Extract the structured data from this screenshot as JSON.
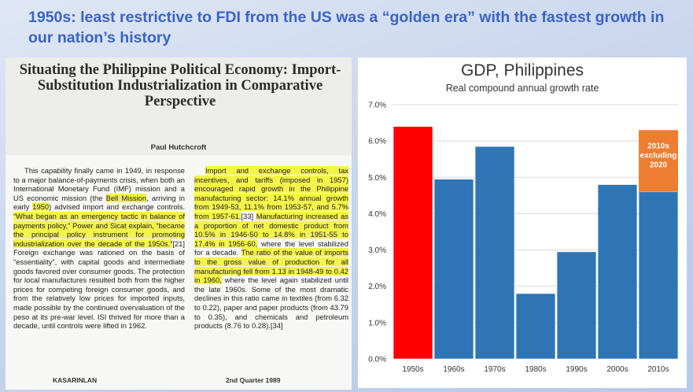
{
  "slide": {
    "title": "1950s: least restrictive to FDI from the US was a “golden era” with the fastest growth in our nation’s history"
  },
  "paper": {
    "title": "Situating the Philippine Political Economy: Import-Substitution Industrialization in Comparative Perspective",
    "author": "Paul Hutchcroft",
    "left_column": [
      {
        "t": "This capability finally came in 1949, in response to a major balance-of-payments crisis, when both an International Monetary Fund (IMF) mission and a US economic mission (the "
      },
      {
        "t": "Bell Mission",
        "hl": true
      },
      {
        "t": ", arriving in early "
      },
      {
        "t": "1950",
        "hl": true
      },
      {
        "t": ") advised import and exchange controls. "
      },
      {
        "t": "“What began as an emergency tactic in balance of payments policy,” Power and Sicat explain, “became the principal policy instrument for promoting industrialization over the decade of the 1950s.”",
        "hl": true
      },
      {
        "t": "[21] Foreign exchange was rationed on the basis of “essentiality”, with capital goods and intermediate goods favored over consumer goods. The protection for local manufactures resulted both from the higher prices for competing foreign consumer goods, and from the relatively low prices for imported inputs, made possible by the continued overvaluation of the peso at its pre-war level. ISI thrived for more than a decade, until controls were lifted in 1962."
      }
    ],
    "right_column": [
      {
        "t": "Import and exchange controls, tax incentives, and tariffs (imposed in 1957) encouraged rapid growth in the Philippine manufacturing sector: 14.1% annual growth from 1949-53, 11.1% from 1953-57, and 5.7% from 1957-61.",
        "hl": true
      },
      {
        "t": "[33] "
      },
      {
        "t": "Manufacturing increased as a proportion of net domestic product from 10.5% in 1946-50 to 14.8% in 1951-55 to 17.4% in 1956-60,",
        "hl": true
      },
      {
        "t": " where the level stabilized for a decade. "
      },
      {
        "t": "The ratio of the value of imports to the gross value of production for all manufacturing fell from 1.13 in 1948-49 to 0.42 in 1960,",
        "hl": true
      },
      {
        "t": " where the level again stabilized until the late 1960s. Some of the most dramatic declines in this ratio came in textiles (from 6.32 to 0.22), paper and paper products (from 43.79 to 0.35), and chemicals and petroleum products (8.76 to 0.28).[34]"
      }
    ],
    "footer_left": "KASARINLAN",
    "footer_right": "2nd Quarter 1989"
  },
  "chart_data": {
    "type": "bar",
    "title": "GDP, Philippines",
    "subtitle": "Real compound annual growth rate",
    "categories": [
      "1950s",
      "1960s",
      "1970s",
      "1980s",
      "1990s",
      "2000s",
      "2010s"
    ],
    "values": [
      6.4,
      4.95,
      5.85,
      1.8,
      2.95,
      4.8,
      4.6
    ],
    "stacked_extra": {
      "category": "2010s",
      "value": 1.7,
      "label": "2010s excluding 2020",
      "color": "#ed7d31"
    },
    "bar_colors": [
      "#ff0000",
      "#2e75b6",
      "#2e75b6",
      "#2e75b6",
      "#2e75b6",
      "#2e75b6",
      "#2e75b6"
    ],
    "ylim": [
      0,
      7
    ],
    "yticks": [
      "0.0%",
      "1.0%",
      "2.0%",
      "3.0%",
      "4.0%",
      "5.0%",
      "6.0%",
      "7.0%"
    ],
    "grid": true
  }
}
